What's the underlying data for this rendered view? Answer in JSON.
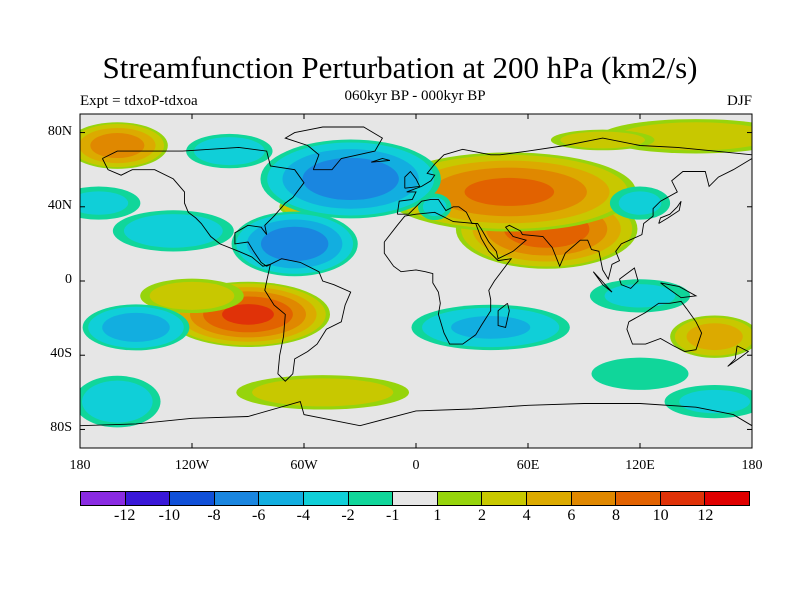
{
  "header": {
    "title": "Streamfunction Perturbation at 200 hPa (km2/s)",
    "subtitle": "060kyr BP - 000kyr BP",
    "left_label": "Expt = tdxoP-tdxoa",
    "right_label": "DJF"
  },
  "map": {
    "projection": "cylindrical equidistant",
    "lon_range": [
      -180,
      180
    ],
    "lat_range": [
      -90,
      90
    ],
    "y_ticks": [
      {
        "lat": 80,
        "label": "80N"
      },
      {
        "lat": 40,
        "label": "40N"
      },
      {
        "lat": 0,
        "label": "0"
      },
      {
        "lat": -40,
        "label": "40S"
      },
      {
        "lat": -80,
        "label": "80S"
      }
    ],
    "x_ticks": [
      {
        "lon": -180,
        "label": "180"
      },
      {
        "lon": -120,
        "label": "120W"
      },
      {
        "lon": -60,
        "label": "60W"
      },
      {
        "lon": 0,
        "label": "0"
      },
      {
        "lon": 60,
        "label": "60E"
      },
      {
        "lon": 120,
        "label": "120E"
      },
      {
        "lon": 180,
        "label": "180"
      }
    ],
    "background_color": "#e6e6e6",
    "coastline_color": "#000000"
  },
  "colorbar": {
    "colors": [
      "#8a2be2",
      "#3a18d8",
      "#1050d8",
      "#1a86e0",
      "#12aee0",
      "#10cfd8",
      "#10d69a",
      "#e6e6e6",
      "#96d40c",
      "#c8c800",
      "#dcaa00",
      "#e08800",
      "#e26200",
      "#e03208",
      "#e00000"
    ],
    "labels": [
      "-12",
      "-10",
      "-8",
      "-6",
      "-4",
      "-2",
      "-1",
      "1",
      "2",
      "4",
      "6",
      "8",
      "10",
      "12"
    ]
  },
  "features": [
    {
      "lon": 70,
      "lat": 28,
      "value": 9,
      "sx": 50,
      "sy": 22
    },
    {
      "lon": 50,
      "lat": 48,
      "value": 8,
      "sx": 70,
      "sy": 22
    },
    {
      "lon": -160,
      "lat": 73,
      "value": 7,
      "sx": 28,
      "sy": 13
    },
    {
      "lon": 150,
      "lat": 78,
      "value": 3,
      "sx": 55,
      "sy": 10
    },
    {
      "lon": -90,
      "lat": -18,
      "value": 10,
      "sx": 45,
      "sy": 18
    },
    {
      "lon": -120,
      "lat": -8,
      "value": 3,
      "sx": 30,
      "sy": 10
    },
    {
      "lon": 160,
      "lat": -30,
      "value": 5,
      "sx": 25,
      "sy": 12
    },
    {
      "lon": -50,
      "lat": -60,
      "value": 3,
      "sx": 50,
      "sy": 10
    },
    {
      "lon": -60,
      "lat": 40,
      "value": 4,
      "sx": 14,
      "sy": 6
    },
    {
      "lon": 100,
      "lat": 76,
      "value": 3,
      "sx": 30,
      "sy": 6
    },
    {
      "lon": -35,
      "lat": 55,
      "value": -7,
      "sx": 50,
      "sy": 22
    },
    {
      "lon": -65,
      "lat": 20,
      "value": -7,
      "sx": 35,
      "sy": 18
    },
    {
      "lon": -130,
      "lat": 27,
      "value": -3,
      "sx": 35,
      "sy": 12
    },
    {
      "lon": -170,
      "lat": 42,
      "value": -2,
      "sx": 25,
      "sy": 10
    },
    {
      "lon": -150,
      "lat": -25,
      "value": -5,
      "sx": 30,
      "sy": 13
    },
    {
      "lon": 40,
      "lat": -25,
      "value": -4,
      "sx": 45,
      "sy": 13
    },
    {
      "lon": 120,
      "lat": -8,
      "value": -2,
      "sx": 30,
      "sy": 10
    },
    {
      "lon": -160,
      "lat": -65,
      "value": -3,
      "sx": 25,
      "sy": 15
    },
    {
      "lon": 160,
      "lat": -65,
      "value": -2,
      "sx": 30,
      "sy": 10
    },
    {
      "lon": 120,
      "lat": 42,
      "value": -2,
      "sx": 18,
      "sy": 10
    },
    {
      "lon": -100,
      "lat": 70,
      "value": -3,
      "sx": 25,
      "sy": 10
    },
    {
      "lon": 10,
      "lat": 40,
      "value": -2,
      "sx": 10,
      "sy": 8
    },
    {
      "lon": 120,
      "lat": -50,
      "value": -1.5,
      "sx": 30,
      "sy": 10
    }
  ]
}
